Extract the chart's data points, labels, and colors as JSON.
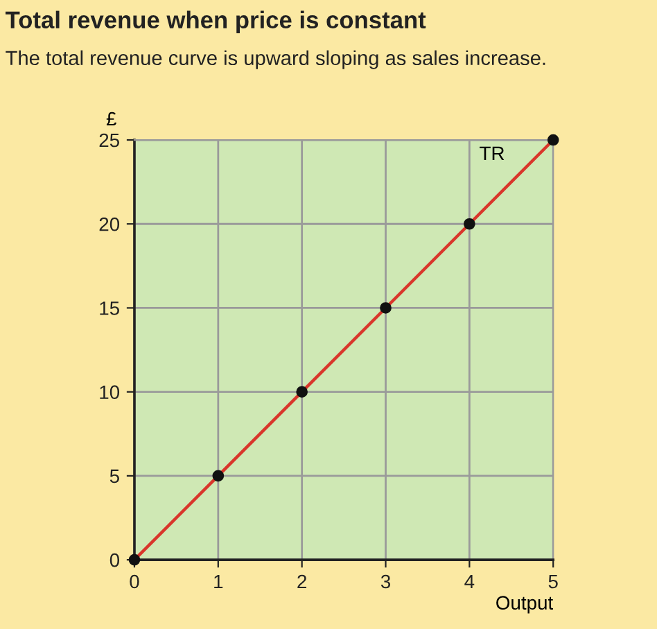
{
  "chart_data": {
    "type": "line",
    "title": "Total revenue when price is constant",
    "subtitle": "The total revenue curve is upward sloping as sales increase.",
    "xlabel": "Output",
    "ylabel": "£",
    "x": [
      0,
      1,
      2,
      3,
      4,
      5
    ],
    "series": [
      {
        "name": "TR",
        "color": "#d9362b",
        "values": [
          0,
          5,
          10,
          15,
          20,
          25
        ]
      }
    ],
    "xlim": [
      0,
      5
    ],
    "xticks": [
      0,
      1,
      2,
      3,
      4,
      5
    ],
    "ylim": [
      0,
      25
    ],
    "yticks": [
      0,
      5,
      10,
      15,
      20,
      25
    ],
    "grid": true,
    "marker": "circle",
    "line_style": "solid",
    "legend": false
  }
}
